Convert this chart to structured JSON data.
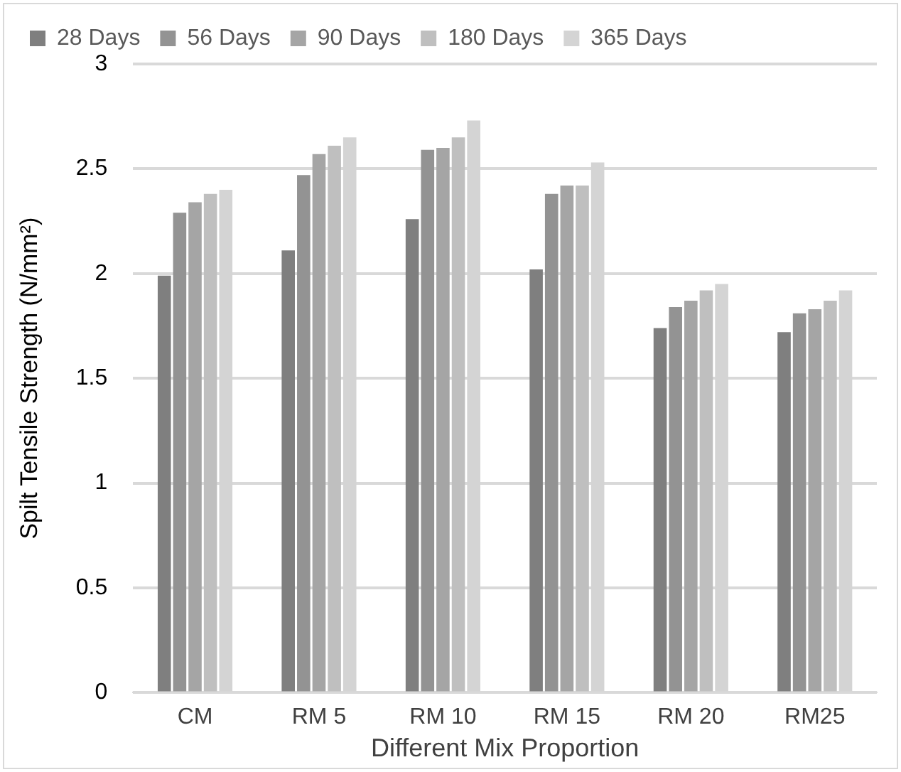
{
  "chart_data": {
    "type": "bar",
    "xlabel": "Different Mix Proportion",
    "ylabel": "Spilt Tensile Strength (N/mm²)",
    "categories": [
      "CM",
      "RM 5",
      "RM 10",
      "RM 15",
      "RM 20",
      "RM25"
    ],
    "series": [
      {
        "name": "28 Days",
        "color": "#7f7f7f",
        "values": [
          1.99,
          2.11,
          2.26,
          2.02,
          1.74,
          1.72
        ]
      },
      {
        "name": "56 Days",
        "color": "#939393",
        "values": [
          2.29,
          2.47,
          2.59,
          2.38,
          1.84,
          1.81
        ]
      },
      {
        "name": "90 Days",
        "color": "#a5a5a5",
        "values": [
          2.34,
          2.57,
          2.6,
          2.42,
          1.87,
          1.83
        ]
      },
      {
        "name": "180 Days",
        "color": "#bfbfbf",
        "values": [
          2.38,
          2.61,
          2.65,
          2.42,
          1.92,
          1.87
        ]
      },
      {
        "name": "365 Days",
        "color": "#d4d4d4",
        "values": [
          2.4,
          2.65,
          2.73,
          2.53,
          1.95,
          1.92
        ]
      }
    ],
    "ylim": [
      0,
      3
    ],
    "yticks": [
      0,
      0.5,
      1,
      1.5,
      2,
      2.5,
      3
    ],
    "grid": "y",
    "legend": "top"
  }
}
